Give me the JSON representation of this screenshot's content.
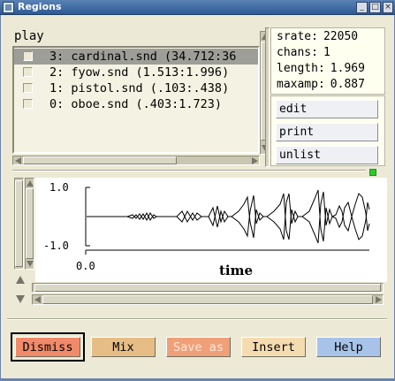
{
  "window": {
    "title": "Regions"
  },
  "play_label": "play",
  "regions": [
    {
      "label": "3: cardinal.snd (34.712:36",
      "selected": true
    },
    {
      "label": "2: fyow.snd (1.513:1.996)",
      "selected": false
    },
    {
      "label": "1: pistol.snd (.103:.438)",
      "selected": false
    },
    {
      "label": "0: oboe.snd (.403:1.723)",
      "selected": false
    }
  ],
  "info": {
    "srate_label": "srate:",
    "srate": "22050",
    "chans_label": "chans:",
    "chans": "1",
    "length_label": "length:",
    "length": "1.969",
    "maxamp_label": "maxamp:",
    "maxamp": "0.887"
  },
  "side_buttons": {
    "edit": "edit",
    "print": "print",
    "unlist": "unlist"
  },
  "graph": {
    "y_top_label": "1.0",
    "y_bottom_label": "-1.0",
    "x_start_label": "0.0",
    "x_axis_label": "time"
  },
  "footer": {
    "dismiss": "Dismiss",
    "mix": "Mix",
    "save_as": "Save as",
    "insert": "Insert",
    "help": "Help"
  },
  "colors": {
    "background": "#ecead6",
    "dismiss": "#f08a6a",
    "mix": "#e7bd86",
    "save_as": "#f0a078",
    "insert": "#f5dcb0",
    "help": "#a7c3ea",
    "selected_row": "#9e9e98"
  }
}
